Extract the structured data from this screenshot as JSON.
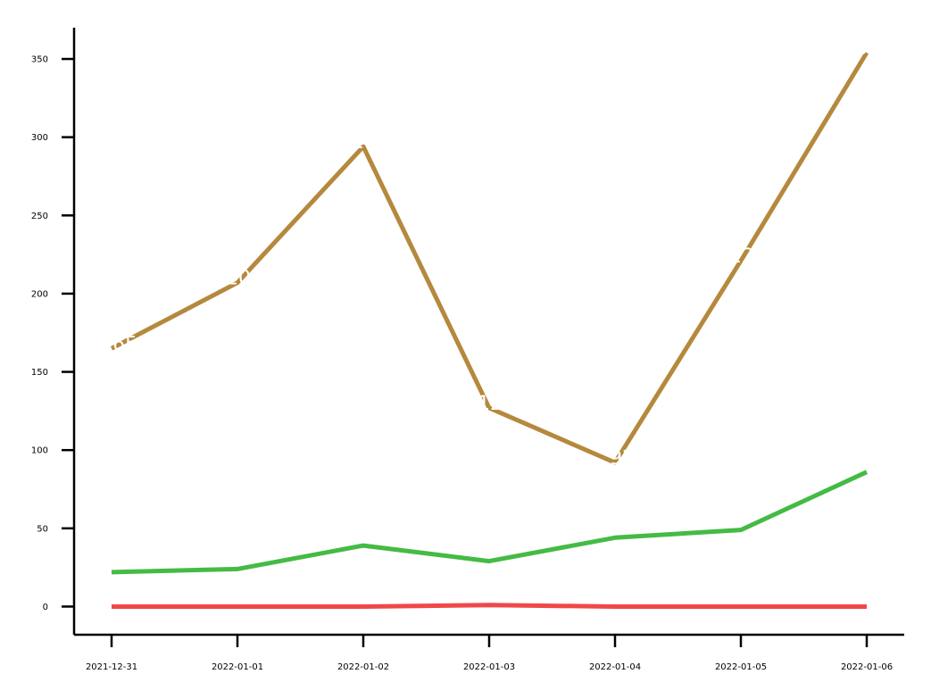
{
  "chart_data": {
    "type": "line",
    "title": "",
    "xlabel": "",
    "ylabel": "",
    "x": [
      "2021-12-31",
      "2022-01-01",
      "2022-01-02",
      "2022-01-03",
      "2022-01-04",
      "2022-01-05",
      "2022-01-06"
    ],
    "ylim": [
      -18,
      370
    ],
    "yticks": [
      0,
      50,
      100,
      150,
      200,
      250,
      300,
      350
    ],
    "grid": false,
    "legend": "none",
    "series": [
      {
        "color": "#b5893d",
        "values": [
          165,
          207,
          294,
          127,
          92,
          221,
          354
        ]
      },
      {
        "color": "#44bb44",
        "values": [
          22,
          24,
          39,
          29,
          44,
          49,
          86
        ]
      },
      {
        "color": "#f04848",
        "values": [
          0,
          0,
          0,
          1,
          0,
          0,
          0
        ]
      }
    ]
  }
}
